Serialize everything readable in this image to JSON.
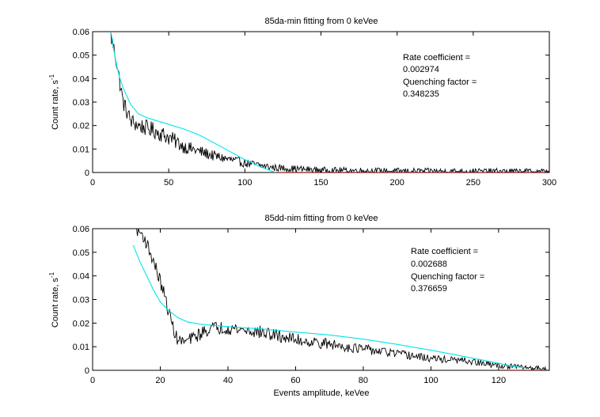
{
  "figure": {
    "background": "#ffffff"
  },
  "colors": {
    "data": "#000000",
    "fit": "#00e5ee",
    "baseline": "#cc0000",
    "axes": "#000000"
  },
  "chart_data": [
    {
      "type": "line",
      "title": "85da-min fitting from 0 keVee",
      "xlabel": "",
      "ylabel": "Count rate, s",
      "ylabel_sup": "-1",
      "xlim": [
        0,
        300
      ],
      "ylim": [
        0,
        0.06
      ],
      "xticks": [
        0,
        50,
        100,
        150,
        200,
        250,
        300
      ],
      "yticks": [
        0,
        0.01,
        0.02,
        0.03,
        0.04,
        0.05,
        0.06
      ],
      "xtick_labels": [
        "0",
        "50",
        "100",
        "150",
        "200",
        "250",
        "300"
      ],
      "ytick_labels": [
        "0",
        "0.01",
        "0.02",
        "0.03",
        "0.04",
        "0.05",
        "0.06"
      ],
      "grid": false,
      "annotation": [
        "Rate coefficient =",
        "0.002974",
        "Quenching factor =",
        "0.348235"
      ],
      "series": [
        {
          "role": "measured",
          "color": "#000000",
          "x_start": 12,
          "x_step": 0.5,
          "n": 577,
          "noise_scale": 0.0035,
          "anchors": [
            [
              12,
              0.058
            ],
            [
              15,
              0.05
            ],
            [
              18,
              0.038
            ],
            [
              20,
              0.03
            ],
            [
              25,
              0.022
            ],
            [
              30,
              0.02
            ],
            [
              40,
              0.018
            ],
            [
              50,
              0.015
            ],
            [
              60,
              0.011
            ],
            [
              70,
              0.009
            ],
            [
              80,
              0.007
            ],
            [
              100,
              0.004
            ],
            [
              120,
              0.002
            ],
            [
              150,
              0.001
            ],
            [
              200,
              0.0006
            ],
            [
              300,
              0.0004
            ]
          ]
        },
        {
          "role": "fit",
          "color": "#00e5ee",
          "x": [
            12,
            14,
            16,
            18,
            20,
            25,
            30,
            35,
            40,
            50,
            60,
            70,
            80,
            90,
            100,
            110,
            120
          ],
          "y": [
            0.06,
            0.052,
            0.045,
            0.04,
            0.036,
            0.029,
            0.025,
            0.0235,
            0.0225,
            0.0205,
            0.0185,
            0.016,
            0.0125,
            0.009,
            0.0055,
            0.0025,
            0.0
          ]
        },
        {
          "role": "baseline",
          "color": "#cc0000",
          "x": [
            120,
            300
          ],
          "y": [
            0,
            0
          ]
        }
      ]
    },
    {
      "type": "line",
      "title": "85dd-nim fitting from 0 keVee",
      "xlabel": "Events amplitude, keVee",
      "ylabel": "Count rate, s",
      "ylabel_sup": "-1",
      "xlim": [
        0,
        135
      ],
      "ylim": [
        0,
        0.06
      ],
      "xticks": [
        0,
        20,
        40,
        60,
        80,
        100,
        120
      ],
      "yticks": [
        0,
        0.01,
        0.02,
        0.03,
        0.04,
        0.05,
        0.06
      ],
      "xtick_labels": [
        "0",
        "20",
        "40",
        "60",
        "80",
        "100",
        "120"
      ],
      "ytick_labels": [
        "0",
        "0.01",
        "0.02",
        "0.03",
        "0.04",
        "0.05",
        "0.06"
      ],
      "grid": false,
      "annotation": [
        "Rate coefficient =",
        "0.002688",
        "Quenching factor =",
        "0.376659"
      ],
      "series": [
        {
          "role": "measured",
          "color": "#000000",
          "x_start": 13,
          "x_step": 0.25,
          "n": 485,
          "noise_scale": 0.0028,
          "anchors": [
            [
              13,
              0.06
            ],
            [
              15,
              0.057
            ],
            [
              17,
              0.05
            ],
            [
              19,
              0.042
            ],
            [
              21,
              0.033
            ],
            [
              23,
              0.022
            ],
            [
              25,
              0.013
            ],
            [
              27,
              0.012
            ],
            [
              30,
              0.014
            ],
            [
              35,
              0.018
            ],
            [
              40,
              0.018
            ],
            [
              50,
              0.016
            ],
            [
              60,
              0.013
            ],
            [
              70,
              0.011
            ],
            [
              80,
              0.009
            ],
            [
              90,
              0.007
            ],
            [
              100,
              0.005
            ],
            [
              110,
              0.004
            ],
            [
              120,
              0.002
            ],
            [
              130,
              0.001
            ],
            [
              134,
              0.001
            ]
          ]
        },
        {
          "role": "fit",
          "color": "#00e5ee",
          "x": [
            12,
            14,
            16,
            18,
            20,
            22,
            25,
            28,
            32,
            36,
            40,
            50,
            60,
            70,
            80,
            90,
            100,
            110,
            120,
            125,
            128
          ],
          "y": [
            0.053,
            0.046,
            0.04,
            0.034,
            0.029,
            0.026,
            0.0225,
            0.0205,
            0.0195,
            0.019,
            0.0185,
            0.0175,
            0.0162,
            0.015,
            0.0132,
            0.011,
            0.0085,
            0.0058,
            0.003,
            0.0015,
            0.001
          ]
        },
        {
          "role": "baseline",
          "color": "#cc0000",
          "x": [
            120,
            135
          ],
          "y": [
            0,
            0
          ]
        }
      ]
    }
  ]
}
